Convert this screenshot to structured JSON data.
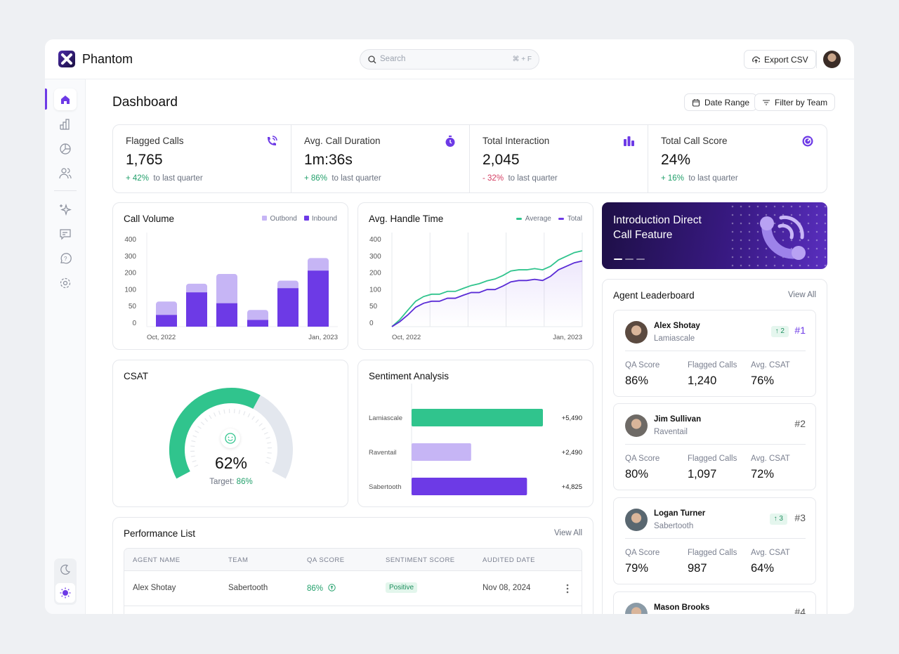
{
  "app": {
    "name": "Phantom"
  },
  "header": {
    "search_placeholder": "Search",
    "search_shortcut": "⌘ + F",
    "export_label": "Export CSV"
  },
  "sidebar": {
    "items": [
      {
        "name": "home",
        "icon": "home-icon",
        "active": true
      },
      {
        "name": "analytics",
        "icon": "bar-chart-icon"
      },
      {
        "name": "reports",
        "icon": "pie-chart-icon"
      },
      {
        "name": "users",
        "icon": "users-icon"
      },
      {
        "name": "ai",
        "icon": "sparkles-icon"
      },
      {
        "name": "messages",
        "icon": "message-icon"
      },
      {
        "name": "help",
        "icon": "help-icon"
      },
      {
        "name": "settings",
        "icon": "gear-icon"
      }
    ],
    "theme": {
      "options": [
        "dark",
        "light"
      ],
      "selected": "light"
    }
  },
  "page": {
    "title": "Dashboard",
    "date_range_label": "Date Range",
    "filter_label": "Filter by Team"
  },
  "kpis": [
    {
      "title": "Flagged Calls",
      "value": "1,765",
      "delta": "+ 42%",
      "delta_dir": "up",
      "suffix": "to last quarter",
      "icon": "phone-ringing-icon"
    },
    {
      "title": "Avg. Call Duration",
      "value": "1m:36s",
      "delta": "+ 86%",
      "delta_dir": "up",
      "suffix": "to last quarter",
      "icon": "stopwatch-icon"
    },
    {
      "title": "Total Interaction",
      "value": "2,045",
      "delta": "- 32%",
      "delta_dir": "down",
      "suffix": "to last quarter",
      "icon": "bar-chart-icon"
    },
    {
      "title": "Total Call Score",
      "value": "24%",
      "delta": "+ 16%",
      "delta_dir": "up",
      "suffix": "to last quarter",
      "icon": "gauge-icon"
    }
  ],
  "colors": {
    "accent": "#6d3ae6",
    "accent_light": "#c6b5f5",
    "green": "#30c48d",
    "up": "#22a06b",
    "down": "#d43d62"
  },
  "chart_data": [
    {
      "type": "bar",
      "title": "Call Volume",
      "stacked": true,
      "y_ticks": [
        0,
        50,
        100,
        200,
        300,
        400
      ],
      "ylim": [
        0,
        400
      ],
      "x_tick_labels": [
        "Oct, 2022",
        "Jan, 2023"
      ],
      "series": [
        {
          "name": "Inbound",
          "values": [
            35,
            105,
            70,
            20,
            130,
            235
          ]
        },
        {
          "name": "Outbond",
          "values": [
            40,
            52,
            145,
            30,
            45,
            75
          ]
        }
      ],
      "legend": "top-right"
    },
    {
      "type": "line",
      "title": "Avg. Handle Time",
      "y_ticks": [
        0,
        50,
        100,
        200,
        300,
        400
      ],
      "ylim": [
        0,
        400
      ],
      "x_tick_labels": [
        "Oct, 2022",
        "Jan, 2023"
      ],
      "grid": "vertical",
      "series": [
        {
          "name": "Average",
          "values": [
            0,
            21,
            49,
            76,
            90,
            97,
            97,
            111,
            111,
            129,
            146,
            157,
            174,
            185,
            206,
            233,
            240,
            240,
            247,
            240,
            261,
            299,
            321,
            343,
            354
          ]
        },
        {
          "name": "Total",
          "values": [
            0,
            15,
            35,
            58,
            70,
            76,
            76,
            85,
            85,
            94,
            104,
            104,
            122,
            122,
            143,
            168,
            176,
            176,
            183,
            176,
            201,
            240,
            261,
            282,
            293
          ]
        }
      ],
      "legend": "top-right"
    },
    {
      "type": "bar",
      "orientation": "horizontal",
      "title": "Sentiment Analysis",
      "categories": [
        "Lamiascale",
        "Raventail",
        "Sabertooth"
      ],
      "values": [
        5490,
        2490,
        4825
      ],
      "labels": [
        "+5,490",
        "+2,490",
        "+4,825"
      ],
      "colors": [
        "#30c48d",
        "#c6b5f5",
        "#6d3ae6"
      ]
    }
  ],
  "csat": {
    "title": "CSAT",
    "value": "62%",
    "fraction": 0.62,
    "target_label": "Target:",
    "target": "86%"
  },
  "banner": {
    "line1": "Introduction Direct",
    "line2": "Call Feature",
    "slides": 3,
    "active_slide": 1
  },
  "leaderboard": {
    "title": "Agent Leaderboard",
    "view_all": "View All",
    "labels": {
      "qa": "QA Score",
      "flagged": "Flagged Calls",
      "csat": "Avg. CSAT"
    },
    "agents": [
      {
        "name": "Alex Shotay",
        "team": "Lamiascale",
        "change": "↑ 2",
        "rank": "#1",
        "qa": "86%",
        "flagged": "1,240",
        "csat": "76%"
      },
      {
        "name": "Jim Sullivan",
        "team": "Raventail",
        "change": "",
        "rank": "#2",
        "qa": "80%",
        "flagged": "1,097",
        "csat": "72%"
      },
      {
        "name": "Logan Turner",
        "team": "Sabertooth",
        "change": "↑ 3",
        "rank": "#3",
        "qa": "79%",
        "flagged": "987",
        "csat": "64%"
      },
      {
        "name": "Mason Brooks",
        "team": "",
        "change": "",
        "rank": "#4",
        "qa": "",
        "flagged": "",
        "csat": ""
      }
    ]
  },
  "performance": {
    "title": "Performance List",
    "view_all": "View All",
    "columns": [
      "AGENT NAME",
      "TEAM",
      "QA SCORE",
      "SENTIMENT SCORE",
      "AUDITED DATE"
    ],
    "rows": [
      {
        "agent": "Alex Shotay",
        "team": "Sabertooth",
        "qa": "86%",
        "sentiment": "Positive",
        "date": "Nov 08, 2024"
      }
    ]
  }
}
